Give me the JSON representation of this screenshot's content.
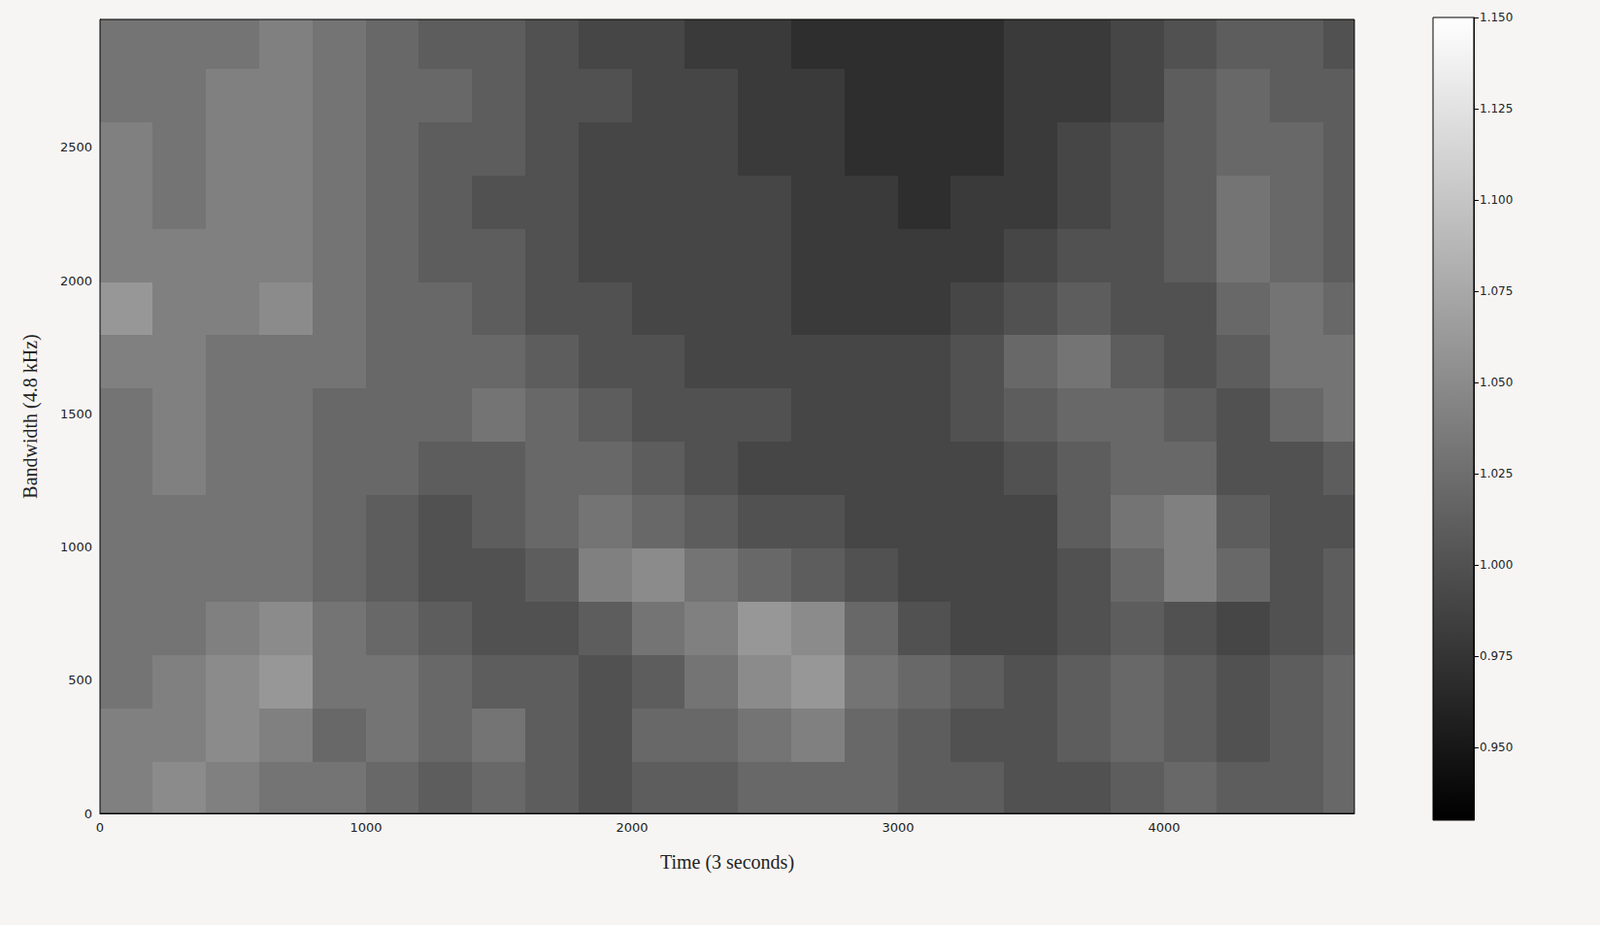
{
  "chart_data": {
    "type": "heatmap",
    "x_label": "Time (3 seconds)",
    "y_label": "Bandwidth (4.8 kHz)",
    "xlim": [
      0,
      4715
    ],
    "ylim": [
      0,
      2980
    ],
    "xticks": [
      0,
      1000,
      2000,
      3000,
      4000
    ],
    "yticks": [
      0,
      500,
      1000,
      1500,
      2000,
      2500
    ],
    "color": "gray",
    "x_edges": [
      0,
      200,
      400,
      600,
      800,
      1000,
      1200,
      1400,
      1600,
      1800,
      2000,
      2200,
      2400,
      2600,
      2800,
      3000,
      3200,
      3400,
      3600,
      3800,
      4000,
      4200,
      4400,
      4600,
      4715
    ],
    "y_edges": [
      0,
      200,
      400,
      600,
      800,
      1000,
      1200,
      1400,
      1600,
      1800,
      2000,
      2200,
      2400,
      2600,
      2800,
      2980
    ],
    "cells": [
      [
        1.04,
        1.05,
        1.04,
        1.03,
        1.03,
        1.02,
        1.01,
        1.02,
        1.01,
        1.0,
        1.01,
        1.01,
        1.02,
        1.02,
        1.02,
        1.01,
        1.01,
        1.0,
        1.0,
        1.01,
        1.02,
        1.01,
        1.01,
        1.02
      ],
      [
        1.04,
        1.04,
        1.05,
        1.04,
        1.02,
        1.03,
        1.02,
        1.03,
        1.01,
        1.0,
        1.02,
        1.02,
        1.03,
        1.04,
        1.02,
        1.01,
        1.0,
        1.0,
        1.01,
        1.02,
        1.01,
        1.0,
        1.01,
        1.02
      ],
      [
        1.03,
        1.04,
        1.05,
        1.06,
        1.03,
        1.03,
        1.02,
        1.01,
        1.01,
        1.0,
        1.01,
        1.03,
        1.05,
        1.06,
        1.03,
        1.02,
        1.01,
        1.0,
        1.01,
        1.02,
        1.01,
        1.0,
        1.01,
        1.02
      ],
      [
        1.03,
        1.03,
        1.04,
        1.05,
        1.03,
        1.02,
        1.01,
        1.0,
        1.0,
        1.01,
        1.03,
        1.04,
        1.06,
        1.05,
        1.02,
        1.0,
        0.99,
        0.99,
        1.0,
        1.01,
        1.0,
        0.99,
        1.0,
        1.01
      ],
      [
        1.03,
        1.03,
        1.03,
        1.03,
        1.02,
        1.01,
        1.0,
        1.0,
        1.01,
        1.04,
        1.05,
        1.03,
        1.02,
        1.01,
        1.0,
        0.99,
        0.99,
        0.99,
        1.0,
        1.02,
        1.04,
        1.02,
        1.0,
        1.01
      ],
      [
        1.03,
        1.03,
        1.03,
        1.03,
        1.02,
        1.01,
        1.0,
        1.01,
        1.02,
        1.03,
        1.02,
        1.01,
        1.0,
        1.0,
        0.99,
        0.99,
        0.99,
        0.99,
        1.01,
        1.03,
        1.04,
        1.01,
        1.0,
        1.0
      ],
      [
        1.03,
        1.04,
        1.03,
        1.03,
        1.02,
        1.02,
        1.01,
        1.01,
        1.02,
        1.02,
        1.01,
        1.0,
        0.99,
        0.99,
        0.99,
        0.99,
        0.99,
        1.0,
        1.01,
        1.02,
        1.02,
        1.0,
        1.0,
        1.01
      ],
      [
        1.03,
        1.04,
        1.03,
        1.03,
        1.02,
        1.02,
        1.02,
        1.03,
        1.02,
        1.01,
        1.0,
        1.0,
        1.0,
        0.99,
        0.99,
        0.99,
        1.0,
        1.01,
        1.02,
        1.02,
        1.01,
        1.0,
        1.02,
        1.03
      ],
      [
        1.04,
        1.04,
        1.03,
        1.03,
        1.03,
        1.02,
        1.02,
        1.02,
        1.01,
        1.0,
        1.0,
        0.99,
        0.99,
        0.99,
        0.99,
        0.99,
        1.0,
        1.02,
        1.03,
        1.01,
        1.0,
        1.01,
        1.03,
        1.03
      ],
      [
        1.06,
        1.04,
        1.04,
        1.05,
        1.03,
        1.02,
        1.02,
        1.01,
        1.0,
        1.0,
        0.99,
        0.99,
        0.99,
        0.98,
        0.98,
        0.98,
        0.99,
        1.0,
        1.01,
        1.0,
        1.0,
        1.02,
        1.03,
        1.02
      ],
      [
        1.04,
        1.04,
        1.04,
        1.04,
        1.03,
        1.02,
        1.01,
        1.01,
        1.0,
        0.99,
        0.99,
        0.99,
        0.99,
        0.98,
        0.98,
        0.98,
        0.98,
        0.99,
        1.0,
        1.0,
        1.01,
        1.03,
        1.02,
        1.01
      ],
      [
        1.04,
        1.03,
        1.04,
        1.04,
        1.03,
        1.02,
        1.01,
        1.0,
        1.0,
        0.99,
        0.99,
        0.99,
        0.99,
        0.98,
        0.98,
        0.97,
        0.98,
        0.98,
        0.99,
        1.0,
        1.01,
        1.03,
        1.02,
        1.01
      ],
      [
        1.04,
        1.03,
        1.04,
        1.04,
        1.03,
        1.02,
        1.01,
        1.01,
        1.0,
        0.99,
        0.99,
        0.99,
        0.98,
        0.98,
        0.97,
        0.97,
        0.97,
        0.98,
        0.99,
        1.0,
        1.01,
        1.02,
        1.02,
        1.01
      ],
      [
        1.03,
        1.03,
        1.04,
        1.04,
        1.03,
        1.02,
        1.02,
        1.01,
        1.0,
        1.0,
        0.99,
        0.99,
        0.98,
        0.98,
        0.97,
        0.97,
        0.97,
        0.98,
        0.98,
        0.99,
        1.01,
        1.02,
        1.01,
        1.01
      ],
      [
        1.03,
        1.03,
        1.03,
        1.04,
        1.03,
        1.02,
        1.01,
        1.01,
        1.0,
        0.99,
        0.99,
        0.98,
        0.98,
        0.97,
        0.97,
        0.97,
        0.97,
        0.98,
        0.98,
        0.99,
        1.0,
        1.01,
        1.01,
        1.0
      ]
    ],
    "colorbar_range": [
      0.93,
      1.15
    ],
    "colorbar_ticks": [
      {
        "value": 0.95,
        "label": "0.950"
      },
      {
        "value": 0.975,
        "label": "0.975"
      },
      {
        "value": 1.0,
        "label": "1.000"
      },
      {
        "value": 1.025,
        "label": "1.025"
      },
      {
        "value": 1.05,
        "label": "1.050"
      },
      {
        "value": 1.075,
        "label": "1.075"
      },
      {
        "value": 1.1,
        "label": "1.100"
      },
      {
        "value": 1.125,
        "label": "1.125"
      },
      {
        "value": 1.15,
        "label": "1.150"
      }
    ]
  }
}
